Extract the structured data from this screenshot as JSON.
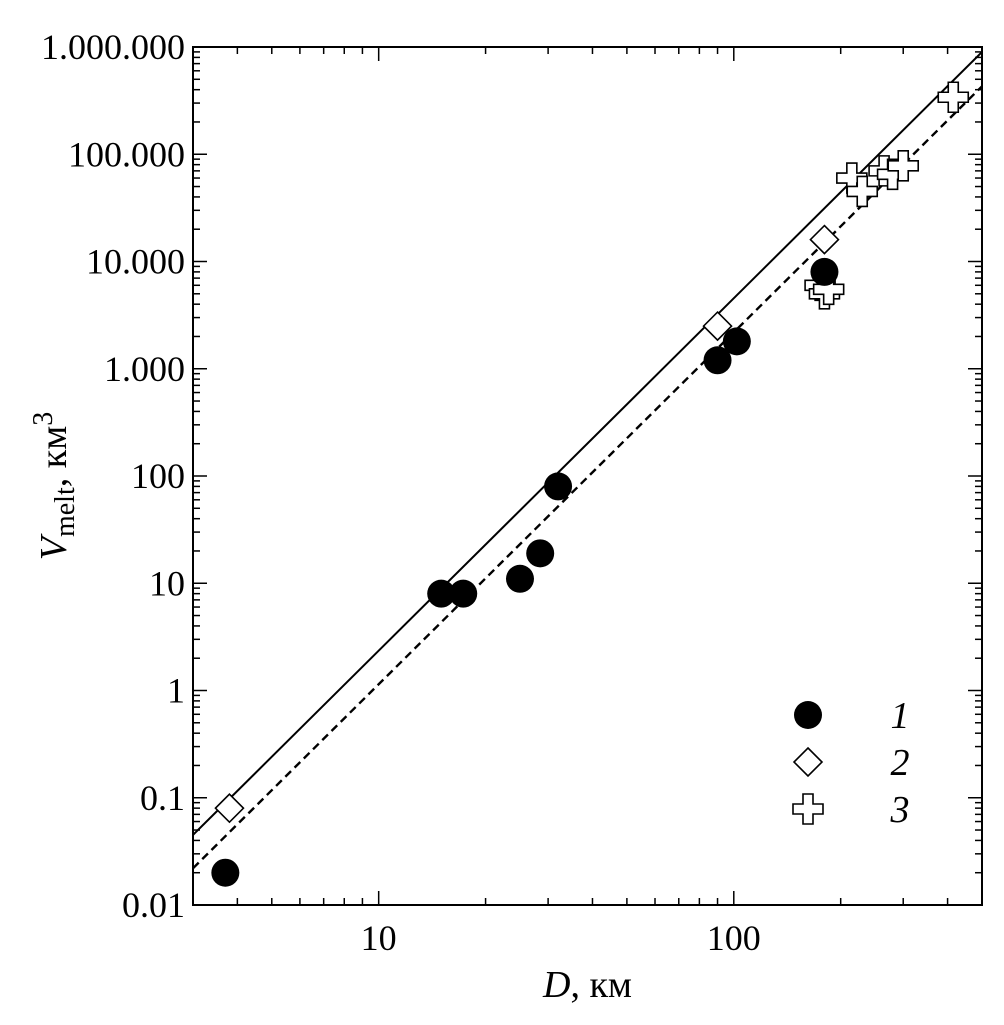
{
  "chart_data": {
    "type": "scatter",
    "x_scale": "log",
    "y_scale": "log",
    "xlim": [
      3,
      500
    ],
    "ylim": [
      0.01,
      1000000
    ],
    "grid": false,
    "legend_position": "bottom-right",
    "x_axis": {
      "label_symbol": "D",
      "label_unit": ", км",
      "ticks": [
        {
          "value": 10,
          "label": "10"
        },
        {
          "value": 100,
          "label": "100"
        }
      ]
    },
    "y_axis": {
      "label_symbol": "V",
      "label_subscript": "melt",
      "label_unit": ", км",
      "label_superscript": "3",
      "ticks": [
        {
          "value": 0.01,
          "label": "0.01"
        },
        {
          "value": 0.1,
          "label": "0.1"
        },
        {
          "value": 1,
          "label": "1"
        },
        {
          "value": 10,
          "label": "10"
        },
        {
          "value": 100,
          "label": "100"
        },
        {
          "value": 1000,
          "label": "1.000"
        },
        {
          "value": 10000,
          "label": "10.000"
        },
        {
          "value": 100000,
          "label": "100.000"
        },
        {
          "value": 1000000,
          "label": "1.000.000"
        }
      ]
    },
    "series": [
      {
        "name": "1",
        "marker": "filled-circle",
        "color": "#000000",
        "points": [
          {
            "x": 3.7,
            "y": 0.02
          },
          {
            "x": 15,
            "y": 8
          },
          {
            "x": 17.3,
            "y": 8
          },
          {
            "x": 25,
            "y": 11
          },
          {
            "x": 28.5,
            "y": 19
          },
          {
            "x": 32,
            "y": 80
          },
          {
            "x": 90,
            "y": 1200
          },
          {
            "x": 102,
            "y": 1800
          },
          {
            "x": 180,
            "y": 8000
          }
        ]
      },
      {
        "name": "2",
        "marker": "open-diamond",
        "color": "#000000",
        "points": [
          {
            "x": 3.8,
            "y": 0.08
          },
          {
            "x": 90,
            "y": 2500
          },
          {
            "x": 180,
            "y": 16000
          }
        ]
      },
      {
        "name": "3",
        "marker": "open-cross",
        "color": "#000000",
        "points": [
          {
            "x": 175,
            "y": 6000
          },
          {
            "x": 180,
            "y": 5000
          },
          {
            "x": 185,
            "y": 5500
          },
          {
            "x": 215,
            "y": 60000
          },
          {
            "x": 230,
            "y": 45000
          },
          {
            "x": 265,
            "y": 70000
          },
          {
            "x": 280,
            "y": 65000
          },
          {
            "x": 300,
            "y": 78000
          },
          {
            "x": 415,
            "y": 340000
          }
        ]
      }
    ],
    "lines": [
      {
        "style": "solid",
        "color": "#000000",
        "x": [
          3,
          500
        ],
        "y": [
          0.045,
          900000
        ]
      },
      {
        "style": "dashed",
        "color": "#000000",
        "x": [
          3,
          500
        ],
        "y": [
          0.022,
          430000
        ]
      }
    ]
  }
}
